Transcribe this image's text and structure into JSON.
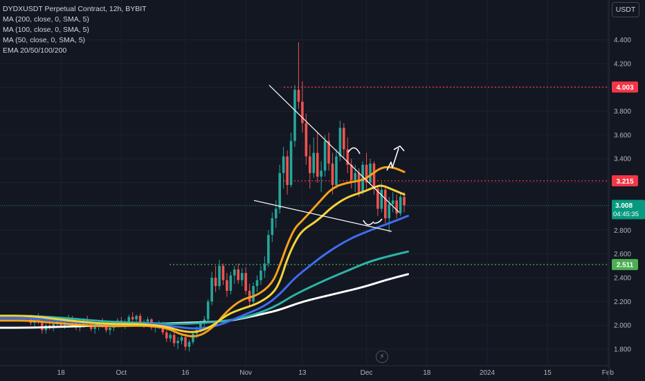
{
  "legend": {
    "title": "DYDXUSDT Perpetual Contract, 12h, BYBIT",
    "lines": [
      "MA (200, close, 0, SMA, 5)",
      "MA (100, close, 0, SMA, 5)",
      "MA (50, close, 0, SMA, 5)",
      "EMA 20/50/100/200"
    ]
  },
  "toolbar": {
    "currency_label": "USDT"
  },
  "icons": {
    "bolt": "lightning-icon"
  },
  "colors": {
    "background": "#131722",
    "up": "#26a69a",
    "down": "#ef5350",
    "ma_white": "#ffffff",
    "ma_teal": "#2bb5a8",
    "ma_blue": "#3f6df0",
    "ema_orange": "#f7a11a",
    "ema_yellow": "#f5d33a",
    "resistance": "#f23645",
    "support": "#4caf50"
  },
  "chart_data": {
    "type": "candlestick",
    "symbol": "DYDXUSDT",
    "interval": "12h",
    "exchange": "BYBIT",
    "ylim": [
      1.65,
      4.7
    ],
    "y_ticks": [
      1.8,
      2.0,
      2.2,
      2.4,
      2.6,
      2.8,
      3.0,
      3.2,
      3.4,
      3.6,
      3.8,
      4.0,
      4.2,
      4.4
    ],
    "y_tick_labels": [
      "1.800",
      "2.000",
      "2.200",
      "2.400",
      "2.600",
      "2.800",
      "",
      "",
      "3.400",
      "3.600",
      "3.800",
      "",
      "4.200",
      "4.400"
    ],
    "x_tick_labels": [
      "18",
      "Oct",
      "16",
      "Nov",
      "13",
      "Dec",
      "18",
      "2024",
      "15",
      "Feb"
    ],
    "x_tick_bars": [
      8,
      24,
      41,
      57,
      72,
      89,
      105,
      121,
      137,
      153
    ],
    "last_price": {
      "value": 3.008,
      "label": "3.008",
      "countdown": "04:45:35"
    },
    "horizontal_levels": [
      {
        "value": 4.003,
        "label": "4.003",
        "kind": "resistance"
      },
      {
        "value": 3.215,
        "label": "3.215",
        "kind": "resistance"
      },
      {
        "value": 2.511,
        "label": "2.511",
        "kind": "support"
      }
    ],
    "trendlines": [
      {
        "from": [
          70.5,
          4.02
        ],
        "to": [
          105,
          2.95
        ]
      },
      {
        "from": [
          66.5,
          3.05
        ],
        "to": [
          103,
          2.79
        ]
      }
    ],
    "ohlc": [
      [
        2.06,
        2.09,
        2.0,
        2.02
      ],
      [
        2.02,
        2.08,
        1.99,
        2.06
      ],
      [
        2.06,
        2.1,
        2.01,
        2.03
      ],
      [
        2.03,
        2.05,
        1.93,
        1.96
      ],
      [
        1.96,
        2.02,
        1.93,
        2.0
      ],
      [
        2.0,
        2.04,
        1.96,
        1.98
      ],
      [
        1.98,
        2.03,
        1.95,
        2.01
      ],
      [
        2.01,
        2.06,
        1.98,
        2.04
      ],
      [
        2.04,
        2.07,
        1.99,
        2.0
      ],
      [
        2.0,
        2.05,
        1.97,
        2.03
      ],
      [
        2.03,
        2.09,
        2.0,
        2.06
      ],
      [
        2.06,
        2.08,
        2.01,
        2.02
      ],
      [
        2.02,
        2.04,
        1.96,
        1.98
      ],
      [
        1.98,
        2.03,
        1.95,
        2.01
      ],
      [
        2.01,
        2.06,
        1.98,
        2.04
      ],
      [
        2.04,
        2.08,
        2.0,
        2.02
      ],
      [
        2.02,
        2.04,
        1.95,
        1.97
      ],
      [
        1.97,
        2.01,
        1.93,
        1.99
      ],
      [
        1.99,
        2.04,
        1.96,
        2.02
      ],
      [
        2.02,
        2.06,
        1.98,
        2.0
      ],
      [
        2.0,
        2.03,
        1.94,
        1.96
      ],
      [
        1.96,
        2.0,
        1.92,
        1.98
      ],
      [
        1.98,
        2.03,
        1.95,
        2.02
      ],
      [
        2.02,
        2.06,
        1.99,
        2.04
      ],
      [
        2.04,
        2.07,
        2.0,
        2.01
      ],
      [
        2.01,
        2.05,
        1.97,
        2.03
      ],
      [
        2.03,
        2.09,
        2.0,
        2.07
      ],
      [
        2.07,
        2.11,
        2.02,
        2.05
      ],
      [
        2.05,
        2.09,
        2.02,
        2.08
      ],
      [
        2.08,
        2.1,
        2.0,
        2.02
      ],
      [
        2.02,
        2.05,
        1.98,
        2.03
      ],
      [
        2.03,
        2.07,
        2.0,
        2.05
      ],
      [
        2.05,
        2.06,
        1.96,
        1.98
      ],
      [
        1.98,
        2.02,
        1.94,
        2.0
      ],
      [
        2.0,
        2.04,
        1.97,
        2.02
      ],
      [
        2.02,
        2.03,
        1.92,
        1.94
      ],
      [
        1.94,
        1.97,
        1.86,
        1.89
      ],
      [
        1.89,
        1.94,
        1.86,
        1.92
      ],
      [
        1.92,
        1.95,
        1.82,
        1.85
      ],
      [
        1.85,
        1.9,
        1.8,
        1.87
      ],
      [
        1.87,
        1.92,
        1.84,
        1.9
      ],
      [
        1.9,
        1.93,
        1.79,
        1.82
      ],
      [
        1.82,
        1.88,
        1.78,
        1.86
      ],
      [
        1.86,
        1.95,
        1.84,
        1.93
      ],
      [
        1.93,
        1.99,
        1.89,
        1.96
      ],
      [
        1.96,
        2.04,
        1.94,
        2.02
      ],
      [
        2.02,
        2.08,
        1.98,
        2.05
      ],
      [
        2.05,
        2.22,
        2.03,
        2.2
      ],
      [
        2.2,
        2.45,
        2.17,
        2.4
      ],
      [
        2.4,
        2.5,
        2.28,
        2.33
      ],
      [
        2.33,
        2.55,
        2.3,
        2.5
      ],
      [
        2.5,
        2.52,
        2.34,
        2.38
      ],
      [
        2.38,
        2.44,
        2.24,
        2.29
      ],
      [
        2.29,
        2.45,
        2.26,
        2.42
      ],
      [
        2.42,
        2.5,
        2.35,
        2.47
      ],
      [
        2.47,
        2.52,
        2.35,
        2.38
      ],
      [
        2.38,
        2.48,
        2.33,
        2.44
      ],
      [
        2.44,
        2.49,
        2.26,
        2.29
      ],
      [
        2.29,
        2.35,
        2.16,
        2.2
      ],
      [
        2.2,
        2.36,
        2.18,
        2.33
      ],
      [
        2.33,
        2.42,
        2.28,
        2.38
      ],
      [
        2.38,
        2.5,
        2.34,
        2.46
      ],
      [
        2.46,
        2.58,
        2.4,
        2.52
      ],
      [
        2.52,
        2.8,
        2.49,
        2.76
      ],
      [
        2.76,
        2.95,
        2.7,
        2.9
      ],
      [
        2.9,
        3.05,
        2.82,
        2.98
      ],
      [
        2.98,
        3.35,
        2.94,
        3.28
      ],
      [
        3.28,
        3.5,
        3.15,
        3.42
      ],
      [
        3.42,
        3.47,
        3.1,
        3.18
      ],
      [
        3.18,
        3.62,
        3.16,
        3.55
      ],
      [
        3.55,
        4.02,
        3.5,
        3.98
      ],
      [
        3.98,
        4.38,
        3.82,
        3.88
      ],
      [
        3.88,
        4.05,
        3.62,
        3.7
      ],
      [
        3.7,
        3.78,
        3.35,
        3.42
      ],
      [
        3.42,
        3.52,
        3.15,
        3.28
      ],
      [
        3.28,
        3.58,
        3.24,
        3.45
      ],
      [
        3.45,
        3.62,
        3.2,
        3.25
      ],
      [
        3.25,
        3.38,
        3.12,
        3.3
      ],
      [
        3.3,
        3.6,
        3.25,
        3.55
      ],
      [
        3.55,
        3.62,
        3.3,
        3.36
      ],
      [
        3.36,
        3.45,
        3.1,
        3.18
      ],
      [
        3.18,
        3.48,
        3.15,
        3.42
      ],
      [
        3.42,
        3.72,
        3.38,
        3.66
      ],
      [
        3.66,
        3.7,
        3.4,
        3.48
      ],
      [
        3.48,
        3.58,
        3.28,
        3.35
      ],
      [
        3.35,
        3.4,
        3.15,
        3.22
      ],
      [
        3.22,
        3.35,
        3.12,
        3.28
      ],
      [
        3.28,
        3.32,
        3.08,
        3.12
      ],
      [
        3.12,
        3.38,
        3.1,
        3.35
      ],
      [
        3.35,
        3.45,
        3.14,
        3.2
      ],
      [
        3.2,
        3.4,
        3.18,
        3.36
      ],
      [
        3.36,
        3.38,
        3.1,
        3.15
      ],
      [
        3.15,
        3.18,
        2.92,
        2.98
      ],
      [
        2.98,
        3.2,
        2.95,
        3.14
      ],
      [
        3.14,
        3.16,
        2.86,
        2.9
      ],
      [
        2.9,
        3.08,
        2.78,
        3.02
      ],
      [
        3.02,
        3.12,
        2.95,
        3.05
      ],
      [
        3.05,
        3.1,
        2.9,
        2.94
      ],
      [
        2.94,
        3.12,
        2.92,
        3.08
      ],
      [
        3.08,
        3.12,
        2.95,
        3.01
      ]
    ],
    "moving_averages": [
      {
        "name": "MA (200, close, 0, SMA, 5)",
        "color": "#ffffff",
        "points": [
          [
            0,
            1.98
          ],
          [
            10,
            1.99
          ],
          [
            20,
            2.0
          ],
          [
            30,
            2.01
          ],
          [
            40,
            2.02
          ],
          [
            50,
            2.03
          ],
          [
            55,
            2.05
          ],
          [
            62,
            2.1
          ],
          [
            66,
            2.13
          ],
          [
            72,
            2.2
          ],
          [
            80,
            2.26
          ],
          [
            88,
            2.32
          ],
          [
            94,
            2.38
          ],
          [
            100,
            2.43
          ]
        ]
      },
      {
        "name": "MA (100, close, 0, SMA, 5)",
        "color": "#2bb5a8",
        "points": [
          [
            0,
            2.08
          ],
          [
            10,
            2.06
          ],
          [
            20,
            2.03
          ],
          [
            30,
            2.02
          ],
          [
            40,
            2.01
          ],
          [
            50,
            2.03
          ],
          [
            56,
            2.06
          ],
          [
            62,
            2.12
          ],
          [
            66,
            2.18
          ],
          [
            70,
            2.26
          ],
          [
            78,
            2.38
          ],
          [
            84,
            2.46
          ],
          [
            90,
            2.54
          ],
          [
            96,
            2.59
          ],
          [
            100,
            2.62
          ]
        ]
      },
      {
        "name": "MA (50, close, 0, SMA, 5)",
        "color": "#3f6df0",
        "points": [
          [
            0,
            2.06
          ],
          [
            10,
            2.03
          ],
          [
            20,
            2.01
          ],
          [
            26,
            2.0
          ],
          [
            32,
            2.02
          ],
          [
            40,
            1.98
          ],
          [
            45,
            1.97
          ],
          [
            50,
            2.0
          ],
          [
            56,
            2.08
          ],
          [
            62,
            2.16
          ],
          [
            66,
            2.26
          ],
          [
            70,
            2.4
          ],
          [
            74,
            2.5
          ],
          [
            78,
            2.6
          ],
          [
            84,
            2.72
          ],
          [
            90,
            2.8
          ],
          [
            96,
            2.87
          ],
          [
            100,
            2.92
          ]
        ]
      },
      {
        "name": "EMA 20",
        "color": "#f7a11a",
        "points": [
          [
            0,
            2.04
          ],
          [
            10,
            2.01
          ],
          [
            20,
            1.99
          ],
          [
            30,
            2.0
          ],
          [
            36,
            1.98
          ],
          [
            40,
            1.92
          ],
          [
            44,
            1.9
          ],
          [
            48,
            1.97
          ],
          [
            52,
            2.12
          ],
          [
            56,
            2.22
          ],
          [
            60,
            2.25
          ],
          [
            64,
            2.35
          ],
          [
            66,
            2.5
          ],
          [
            68,
            2.68
          ],
          [
            70,
            2.82
          ],
          [
            72,
            2.88
          ],
          [
            76,
            3.02
          ],
          [
            80,
            3.16
          ],
          [
            84,
            3.2
          ],
          [
            88,
            3.22
          ],
          [
            90,
            3.26
          ],
          [
            93,
            3.33
          ],
          [
            96,
            3.33
          ],
          [
            99,
            3.29
          ]
        ]
      },
      {
        "name": "EMA 50",
        "color": "#f5d33a",
        "points": [
          [
            0,
            2.08
          ],
          [
            10,
            2.04
          ],
          [
            20,
            2.01
          ],
          [
            30,
            2.01
          ],
          [
            36,
            1.99
          ],
          [
            40,
            1.95
          ],
          [
            44,
            1.94
          ],
          [
            48,
            1.99
          ],
          [
            52,
            2.09
          ],
          [
            56,
            2.14
          ],
          [
            60,
            2.18
          ],
          [
            64,
            2.26
          ],
          [
            66,
            2.36
          ],
          [
            68,
            2.56
          ],
          [
            70,
            2.7
          ],
          [
            72,
            2.8
          ],
          [
            76,
            2.88
          ],
          [
            80,
            3.0
          ],
          [
            84,
            3.08
          ],
          [
            88,
            3.12
          ],
          [
            91,
            3.16
          ],
          [
            93,
            3.18
          ],
          [
            96,
            3.14
          ],
          [
            99,
            3.1
          ]
        ]
      }
    ]
  }
}
